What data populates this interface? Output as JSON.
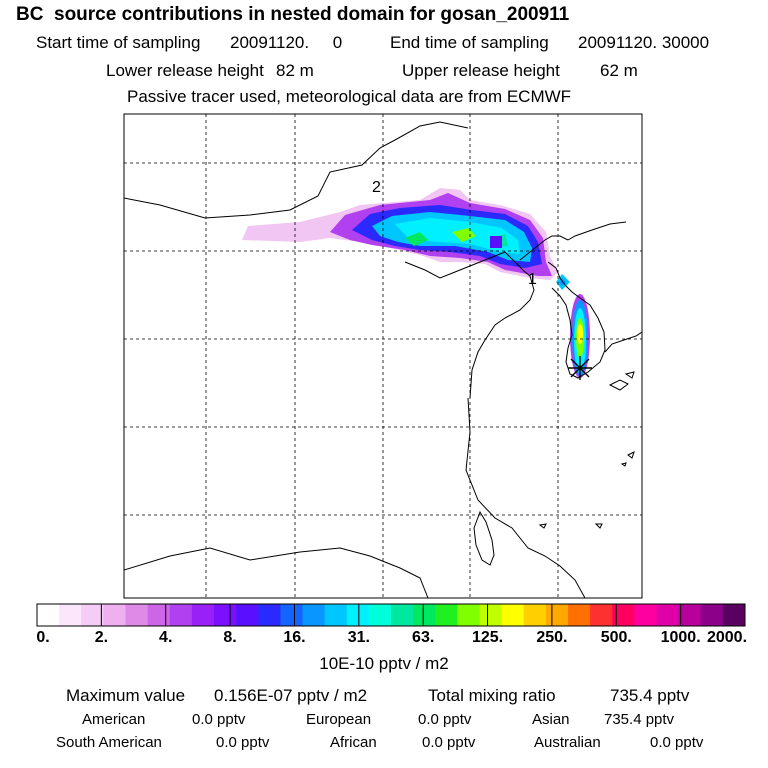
{
  "header": {
    "title": "BC  source contributions in nested domain for gosan_200911",
    "start_label": "Start time of sampling",
    "start_value": "20091120.     0",
    "end_label": "End time of sampling",
    "end_value": "20091120. 30000",
    "lower_label": "Lower release height",
    "lower_value": "82 m",
    "upper_label": "Upper release height",
    "upper_value": "62 m",
    "note": "Passive tracer used, meteorological data are from ECMWF"
  },
  "map": {
    "markers": [
      {
        "label": "2"
      },
      {
        "label": "1"
      }
    ],
    "receptor_symbol": "*"
  },
  "colorbar": {
    "colors": [
      "#ffffff",
      "#fbe6fb",
      "#f5ccf5",
      "#eeb0ee",
      "#e08ae8",
      "#cc66e6",
      "#b040f0",
      "#9a20f8",
      "#7a10ff",
      "#5a10ff",
      "#2a2aff",
      "#1464ff",
      "#0a96ff",
      "#00c6ff",
      "#00f0ff",
      "#00ffd8",
      "#00e8a0",
      "#00e860",
      "#20f020",
      "#80ff00",
      "#c0ff00",
      "#ffff00",
      "#ffd000",
      "#ffa800",
      "#ff7000",
      "#ff3030",
      "#ff0060",
      "#ff00a0",
      "#e000a8",
      "#b8009c",
      "#8a0088",
      "#5a0060"
    ],
    "labels": [
      "0.",
      "2.",
      "4.",
      "8.",
      "16.",
      "31.",
      "63.",
      "125.",
      "250.",
      "500.",
      "1000.",
      "2000."
    ],
    "unit": "10E-10 pptv / m2"
  },
  "stats": {
    "max_label": "Maximum value",
    "max_value": "0.156E-07 pptv / m2",
    "total_label": "Total mixing ratio",
    "total_value": "735.4 pptv",
    "regions": [
      {
        "name": "American",
        "value": "0.0 pptv"
      },
      {
        "name": "European",
        "value": "0.0 pptv"
      },
      {
        "name": "Asian",
        "value": "735.4 pptv"
      },
      {
        "name": "South American",
        "value": "0.0 pptv"
      },
      {
        "name": "African",
        "value": "0.0 pptv"
      },
      {
        "name": "Australian",
        "value": "0.0 pptv"
      }
    ]
  }
}
